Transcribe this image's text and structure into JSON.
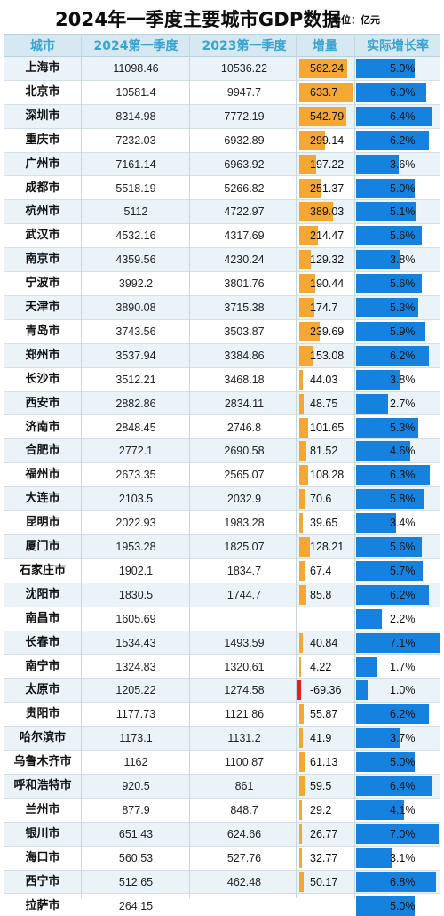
{
  "header": {
    "title": "2024年一季度主要城市GDP数据",
    "unit": "单位：亿元"
  },
  "chart_data": {
    "type": "table",
    "columns": [
      "城市",
      "2024第一季度",
      "2023第一季度",
      "增量",
      "实际增长率"
    ],
    "rows": [
      {
        "city": "上海市",
        "q1_2024": "11098.46",
        "q1_2023": "10536.22",
        "increase": "562.24",
        "rate": "5.0%"
      },
      {
        "city": "北京市",
        "q1_2024": "10581.4",
        "q1_2023": "9947.7",
        "increase": "633.7",
        "rate": "6.0%"
      },
      {
        "city": "深圳市",
        "q1_2024": "8314.98",
        "q1_2023": "7772.19",
        "increase": "542.79",
        "rate": "6.4%"
      },
      {
        "city": "重庆市",
        "q1_2024": "7232.03",
        "q1_2023": "6932.89",
        "increase": "299.14",
        "rate": "6.2%"
      },
      {
        "city": "广州市",
        "q1_2024": "7161.14",
        "q1_2023": "6963.92",
        "increase": "197.22",
        "rate": "3.6%"
      },
      {
        "city": "成都市",
        "q1_2024": "5518.19",
        "q1_2023": "5266.82",
        "increase": "251.37",
        "rate": "5.0%"
      },
      {
        "city": "杭州市",
        "q1_2024": "5112",
        "q1_2023": "4722.97",
        "increase": "389.03",
        "rate": "5.1%"
      },
      {
        "city": "武汉市",
        "q1_2024": "4532.16",
        "q1_2023": "4317.69",
        "increase": "214.47",
        "rate": "5.6%"
      },
      {
        "city": "南京市",
        "q1_2024": "4359.56",
        "q1_2023": "4230.24",
        "increase": "129.32",
        "rate": "3.8%"
      },
      {
        "city": "宁波市",
        "q1_2024": "3992.2",
        "q1_2023": "3801.76",
        "increase": "190.44",
        "rate": "5.6%"
      },
      {
        "city": "天津市",
        "q1_2024": "3890.08",
        "q1_2023": "3715.38",
        "increase": "174.7",
        "rate": "5.3%"
      },
      {
        "city": "青岛市",
        "q1_2024": "3743.56",
        "q1_2023": "3503.87",
        "increase": "239.69",
        "rate": "5.9%"
      },
      {
        "city": "郑州市",
        "q1_2024": "3537.94",
        "q1_2023": "3384.86",
        "increase": "153.08",
        "rate": "6.2%"
      },
      {
        "city": "长沙市",
        "q1_2024": "3512.21",
        "q1_2023": "3468.18",
        "increase": "44.03",
        "rate": "3.8%"
      },
      {
        "city": "西安市",
        "q1_2024": "2882.86",
        "q1_2023": "2834.11",
        "increase": "48.75",
        "rate": "2.7%"
      },
      {
        "city": "济南市",
        "q1_2024": "2848.45",
        "q1_2023": "2746.8",
        "increase": "101.65",
        "rate": "5.3%"
      },
      {
        "city": "合肥市",
        "q1_2024": "2772.1",
        "q1_2023": "2690.58",
        "increase": "81.52",
        "rate": "4.6%"
      },
      {
        "city": "福州市",
        "q1_2024": "2673.35",
        "q1_2023": "2565.07",
        "increase": "108.28",
        "rate": "6.3%"
      },
      {
        "city": "大连市",
        "q1_2024": "2103.5",
        "q1_2023": "2032.9",
        "increase": "70.6",
        "rate": "5.8%"
      },
      {
        "city": "昆明市",
        "q1_2024": "2022.93",
        "q1_2023": "1983.28",
        "increase": "39.65",
        "rate": "3.4%"
      },
      {
        "city": "厦门市",
        "q1_2024": "1953.28",
        "q1_2023": "1825.07",
        "increase": "128.21",
        "rate": "5.6%"
      },
      {
        "city": "石家庄市",
        "q1_2024": "1902.1",
        "q1_2023": "1834.7",
        "increase": "67.4",
        "rate": "5.7%"
      },
      {
        "city": "沈阳市",
        "q1_2024": "1830.5",
        "q1_2023": "1744.7",
        "increase": "85.8",
        "rate": "6.2%"
      },
      {
        "city": "南昌市",
        "q1_2024": "1605.69",
        "q1_2023": "",
        "increase": "",
        "rate": "2.2%"
      },
      {
        "city": "长春市",
        "q1_2024": "1534.43",
        "q1_2023": "1493.59",
        "increase": "40.84",
        "rate": "7.1%"
      },
      {
        "city": "南宁市",
        "q1_2024": "1324.83",
        "q1_2023": "1320.61",
        "increase": "4.22",
        "rate": "1.7%"
      },
      {
        "city": "太原市",
        "q1_2024": "1205.22",
        "q1_2023": "1274.58",
        "increase": "-69.36",
        "rate": "1.0%"
      },
      {
        "city": "贵阳市",
        "q1_2024": "1177.73",
        "q1_2023": "1121.86",
        "increase": "55.87",
        "rate": "6.2%"
      },
      {
        "city": "哈尔滨市",
        "q1_2024": "1173.1",
        "q1_2023": "1131.2",
        "increase": "41.9",
        "rate": "3.7%"
      },
      {
        "city": "乌鲁木齐市",
        "q1_2024": "1162",
        "q1_2023": "1100.87",
        "increase": "61.13",
        "rate": "5.0%"
      },
      {
        "city": "呼和浩特市",
        "q1_2024": "920.5",
        "q1_2023": "861",
        "increase": "59.5",
        "rate": "6.4%"
      },
      {
        "city": "兰州市",
        "q1_2024": "877.9",
        "q1_2023": "848.7",
        "increase": "29.2",
        "rate": "4.1%"
      },
      {
        "city": "银川市",
        "q1_2024": "651.43",
        "q1_2023": "624.66",
        "increase": "26.77",
        "rate": "7.0%"
      },
      {
        "city": "海口市",
        "q1_2024": "560.53",
        "q1_2023": "527.76",
        "increase": "32.77",
        "rate": "3.1%"
      },
      {
        "city": "西宁市",
        "q1_2024": "512.65",
        "q1_2023": "462.48",
        "increase": "50.17",
        "rate": "6.8%"
      },
      {
        "city": "拉萨市",
        "q1_2024": "264.15",
        "q1_2023": "",
        "increase": "",
        "rate": "5.0%"
      }
    ]
  },
  "colors": {
    "header_bg": "#d6e8f2",
    "header_text": "#3aa3cf",
    "row_alt_bg": "#eaf3f8",
    "increase_bar": "#f5a733",
    "negative_bar": "#e8201c",
    "rate_bar": "#1582e0"
  }
}
